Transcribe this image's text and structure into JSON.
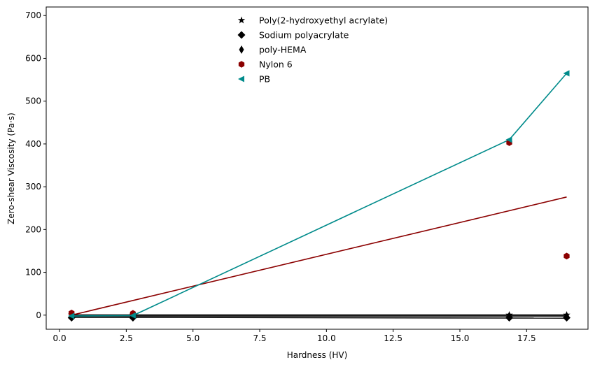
{
  "chart_data": {
    "type": "scatter",
    "title": "",
    "xlabel": "Hardness (HV)",
    "ylabel": "Zero-shear Viscosity (Pa·s)",
    "xlim": [
      -0.5,
      19.8
    ],
    "ylim": [
      -33,
      720
    ],
    "xticks": [
      0.0,
      2.5,
      5.0,
      7.5,
      10.0,
      12.5,
      15.0,
      17.5
    ],
    "xtick_labels": [
      "0.0",
      "2.5",
      "5.0",
      "7.5",
      "10.0",
      "12.5",
      "15.0",
      "17.5"
    ],
    "yticks": [
      0,
      100,
      200,
      300,
      400,
      500,
      600,
      700
    ],
    "ytick_labels": [
      "0",
      "100",
      "200",
      "300",
      "400",
      "500",
      "600",
      "700"
    ],
    "grid": false,
    "legend_position": "top-center",
    "series": [
      {
        "name": "Poly(2-hydroxyethyl acrylate)",
        "marker": "star",
        "color": "#000000",
        "points": [
          [
            0.45,
            0.5
          ],
          [
            2.75,
            0.5
          ],
          [
            16.85,
            0.5
          ],
          [
            19.0,
            0.5
          ]
        ],
        "fit": [
          [
            0.45,
            0.5
          ],
          [
            19.0,
            0.5
          ]
        ]
      },
      {
        "name": "Sodium polyacrylate",
        "marker": "diamond",
        "color": "#000000",
        "points": [
          [
            0.45,
            -6
          ],
          [
            2.75,
            -6
          ],
          [
            16.85,
            -6
          ],
          [
            19.0,
            -6
          ]
        ],
        "fit": [
          [
            0.45,
            -5
          ],
          [
            19.0,
            -7
          ]
        ]
      },
      {
        "name": "poly-HEMA",
        "marker": "thin_diamond",
        "color": "#000000",
        "points": [
          [
            0.45,
            -2
          ],
          [
            2.75,
            -2
          ],
          [
            16.85,
            -2
          ],
          [
            19.0,
            -2
          ]
        ],
        "fit": [
          [
            0.45,
            -2
          ],
          [
            19.0,
            -2
          ]
        ]
      },
      {
        "name": "Nylon 6",
        "marker": "hexagon",
        "color": "#8b0000",
        "points": [
          [
            0.45,
            5
          ],
          [
            2.75,
            4
          ],
          [
            16.85,
            403
          ],
          [
            19.0,
            138
          ]
        ],
        "fit": [
          [
            0.45,
            0
          ],
          [
            19.0,
            276
          ]
        ]
      },
      {
        "name": "PB",
        "marker": "triangle_left",
        "color": "#008b8b",
        "points": [
          [
            0.45,
            -2
          ],
          [
            2.75,
            -1
          ],
          [
            16.85,
            410
          ],
          [
            19.0,
            565
          ]
        ],
        "fit": [
          [
            0.45,
            -2
          ],
          [
            2.75,
            -1
          ],
          [
            16.85,
            410
          ],
          [
            19.0,
            565
          ]
        ]
      }
    ]
  }
}
